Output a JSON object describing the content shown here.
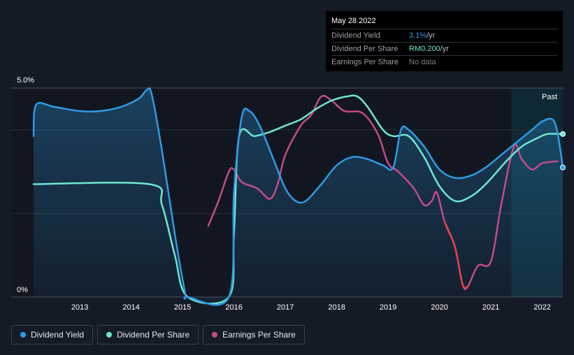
{
  "tooltip": {
    "date": "May 28 2022",
    "rows": [
      {
        "label": "Dividend Yield",
        "value": "3.1%",
        "unit": " /yr"
      },
      {
        "label": "Dividend Per Share",
        "value": "RM0.200",
        "unit": " /yr"
      },
      {
        "label": "Earnings Per Share",
        "value": "No data",
        "unit": ""
      }
    ]
  },
  "chart_data": {
    "type": "line",
    "y_tick_labels": [
      "5.0%",
      "0%"
    ],
    "ylim": [
      0,
      5.0
    ],
    "xlim": [
      2012.1,
      2022.4
    ],
    "x_tick_labels": [
      "2013",
      "2014",
      "2015",
      "2016",
      "2017",
      "2018",
      "2019",
      "2020",
      "2021",
      "2022"
    ],
    "past_label": "Past",
    "past_start": 2021.4,
    "grid": "horizontal",
    "legend_position": "bottom-left",
    "series": [
      {
        "name": "Dividend Yield",
        "color": "#2f9be5",
        "points": [
          [
            2012.1,
            3.85
          ],
          [
            2012.15,
            4.6
          ],
          [
            2012.5,
            4.55
          ],
          [
            2013.0,
            4.45
          ],
          [
            2013.4,
            4.45
          ],
          [
            2013.8,
            4.55
          ],
          [
            2014.15,
            4.75
          ],
          [
            2014.3,
            4.95
          ],
          [
            2014.4,
            4.85
          ],
          [
            2014.6,
            3.5
          ],
          [
            2014.85,
            1.5
          ],
          [
            2015.05,
            0.1
          ],
          [
            2015.1,
            0.0
          ],
          [
            2015.9,
            0.0
          ],
          [
            2016.0,
            2.5
          ],
          [
            2016.15,
            4.3
          ],
          [
            2016.3,
            4.45
          ],
          [
            2016.5,
            4.1
          ],
          [
            2016.8,
            3.2
          ],
          [
            2017.0,
            2.6
          ],
          [
            2017.2,
            2.3
          ],
          [
            2017.4,
            2.3
          ],
          [
            2017.7,
            2.7
          ],
          [
            2018.0,
            3.15
          ],
          [
            2018.3,
            3.35
          ],
          [
            2018.6,
            3.3
          ],
          [
            2018.9,
            3.15
          ],
          [
            2019.1,
            3.1
          ],
          [
            2019.25,
            4.0
          ],
          [
            2019.4,
            4.0
          ],
          [
            2019.7,
            3.6
          ],
          [
            2020.0,
            3.05
          ],
          [
            2020.3,
            2.85
          ],
          [
            2020.6,
            2.9
          ],
          [
            2020.9,
            3.1
          ],
          [
            2021.2,
            3.4
          ],
          [
            2021.5,
            3.7
          ],
          [
            2021.8,
            4.0
          ],
          [
            2022.0,
            4.2
          ],
          [
            2022.2,
            4.25
          ],
          [
            2022.3,
            3.9
          ],
          [
            2022.4,
            3.1
          ]
        ]
      },
      {
        "name": "Dividend Per Share",
        "color": "#6fe6d2",
        "points": [
          [
            2012.1,
            2.7
          ],
          [
            2014.35,
            2.7
          ],
          [
            2014.6,
            2.2
          ],
          [
            2014.85,
            1.0
          ],
          [
            2015.1,
            0.0
          ],
          [
            2015.9,
            0.0
          ],
          [
            2016.0,
            1.5
          ],
          [
            2016.1,
            3.85
          ],
          [
            2016.4,
            3.85
          ],
          [
            2016.7,
            3.95
          ],
          [
            2017.0,
            4.1
          ],
          [
            2017.3,
            4.25
          ],
          [
            2017.6,
            4.5
          ],
          [
            2017.9,
            4.7
          ],
          [
            2018.2,
            4.8
          ],
          [
            2018.4,
            4.8
          ],
          [
            2018.6,
            4.55
          ],
          [
            2018.9,
            4.0
          ],
          [
            2019.1,
            3.85
          ],
          [
            2019.4,
            3.85
          ],
          [
            2019.7,
            3.35
          ],
          [
            2020.0,
            2.65
          ],
          [
            2020.3,
            2.3
          ],
          [
            2020.6,
            2.4
          ],
          [
            2020.9,
            2.7
          ],
          [
            2021.3,
            3.25
          ],
          [
            2021.6,
            3.6
          ],
          [
            2021.9,
            3.8
          ],
          [
            2022.1,
            3.9
          ],
          [
            2022.4,
            3.9
          ]
        ]
      },
      {
        "name": "Earnings Per Share",
        "color": "#c24b8a",
        "points": [
          [
            2015.5,
            1.7
          ],
          [
            2015.7,
            2.3
          ],
          [
            2015.9,
            3.0
          ],
          [
            2016.0,
            3.05
          ],
          [
            2016.15,
            2.75
          ],
          [
            2016.45,
            2.6
          ],
          [
            2016.7,
            2.35
          ],
          [
            2016.85,
            2.7
          ],
          [
            2017.0,
            3.4
          ],
          [
            2017.3,
            4.1
          ],
          [
            2017.5,
            4.35
          ],
          [
            2017.7,
            4.8
          ],
          [
            2017.9,
            4.7
          ],
          [
            2018.15,
            4.45
          ],
          [
            2018.5,
            4.4
          ],
          [
            2018.8,
            3.9
          ],
          [
            2019.0,
            3.2
          ],
          [
            2019.2,
            3.0
          ],
          [
            2019.5,
            2.6
          ],
          [
            2019.7,
            2.2
          ],
          [
            2019.85,
            2.3
          ],
          [
            2019.95,
            2.5
          ],
          [
            2020.1,
            1.8
          ],
          [
            2020.3,
            1.2
          ],
          [
            2020.45,
            0.3
          ],
          [
            2020.55,
            0.25
          ],
          [
            2020.75,
            0.75
          ],
          [
            2021.0,
            0.85
          ],
          [
            2021.2,
            2.2
          ],
          [
            2021.45,
            3.6
          ],
          [
            2021.6,
            3.3
          ],
          [
            2021.8,
            3.05
          ],
          [
            2022.0,
            3.2
          ],
          [
            2022.3,
            3.25
          ]
        ]
      }
    ]
  },
  "legend": [
    {
      "label": "Dividend Yield",
      "color": "#2f9be5"
    },
    {
      "label": "Dividend Per Share",
      "color": "#6fe6d2"
    },
    {
      "label": "Earnings Per Share",
      "color": "#c24b8a"
    }
  ]
}
